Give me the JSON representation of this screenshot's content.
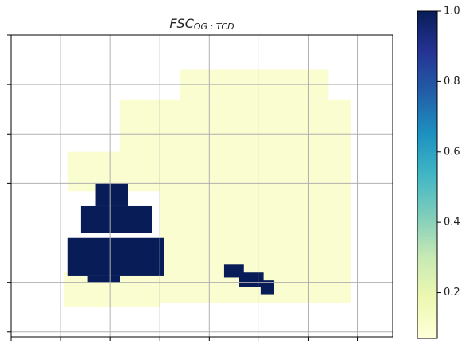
{
  "chart_data": {
    "type": "heatmap",
    "title": {
      "main": "FSC",
      "subscript": "OG : TCD"
    },
    "colormap": "YlGnBu",
    "xlim": [
      0,
      385
    ],
    "xticks": [
      0,
      50,
      100,
      150,
      200,
      250,
      300,
      350
    ],
    "ylim": [
      0,
      305
    ],
    "yticks": [
      0,
      50,
      100,
      150,
      200,
      250,
      300
    ],
    "grid": true,
    "clim": [
      0.07,
      1
    ],
    "cticks": [
      0.2,
      0.4,
      0.6,
      0.8,
      {
        "value": 1,
        "label": "1.0"
      }
    ],
    "regions": [
      {
        "x": [
          170,
          320
        ],
        "y": [
          35,
          65
        ],
        "value": 0.1
      },
      {
        "x": [
          110,
          343
        ],
        "y": [
          65,
          158
        ],
        "value": 0.1
      },
      {
        "x": [
          57,
          110
        ],
        "y": [
          118,
          158
        ],
        "value": 0.1
      },
      {
        "x": [
          150,
          343
        ],
        "y": [
          158,
          271
        ],
        "value": 0.1
      },
      {
        "x": [
          53,
          150
        ],
        "y": [
          239,
          275
        ],
        "value": 0.1
      },
      {
        "x": [
          57,
          154
        ],
        "y": [
          205,
          243
        ],
        "value": 1
      },
      {
        "x": [
          70,
          142
        ],
        "y": [
          173,
          200
        ],
        "value": 1
      },
      {
        "x": [
          85,
          118
        ],
        "y": [
          150,
          173
        ],
        "value": 1
      },
      {
        "x": [
          77,
          110
        ],
        "y": [
          243,
          251
        ],
        "value": 1
      },
      {
        "x": [
          215,
          235
        ],
        "y": [
          232,
          245
        ],
        "value": 1
      },
      {
        "x": [
          230,
          255
        ],
        "y": [
          240,
          255
        ],
        "value": 1
      },
      {
        "x": [
          252,
          265
        ],
        "y": [
          248,
          262
        ],
        "value": 1
      }
    ]
  }
}
